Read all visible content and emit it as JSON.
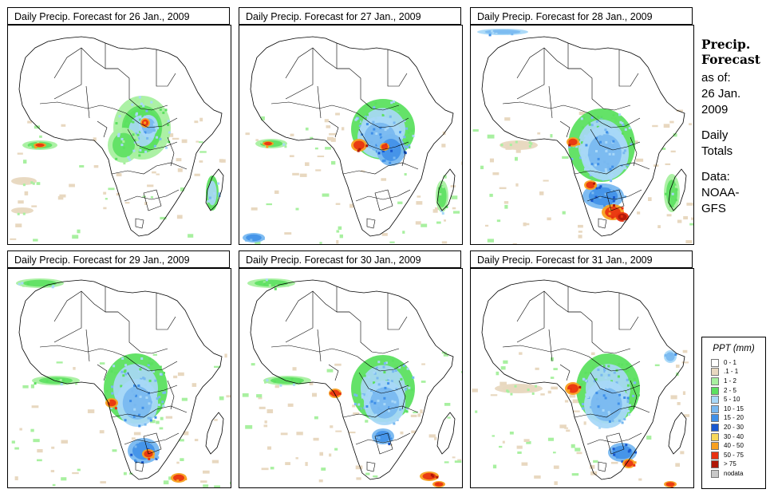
{
  "panels": [
    {
      "title": "Daily Precip. Forecast for  26 Jan., 2009",
      "day": 0
    },
    {
      "title": "Daily Precip. Forecast for  27 Jan., 2009",
      "day": 1
    },
    {
      "title": "Daily Precip. Forecast for  28 Jan., 2009",
      "day": 2
    },
    {
      "title": "Daily Precip. Forecast for  29 Jan., 2009",
      "day": 3
    },
    {
      "title": "Daily Precip. Forecast for  30 Jan., 2009",
      "day": 4
    },
    {
      "title": "Daily Precip. Forecast for  31 Jan., 2009",
      "day": 5
    }
  ],
  "side": {
    "title1": "Precip.",
    "title2": "Forecast",
    "asof1": "as of:",
    "asof2": "26 Jan.",
    "asof3": "2009",
    "daily1": "Daily",
    "daily2": "Totals",
    "data1": "Data:",
    "data2": "NOAA-",
    "data3": "GFS"
  },
  "legend": {
    "title": "PPT (mm)",
    "items": [
      {
        "label": "0 - 1",
        "color": "#ffffff"
      },
      {
        "label": ".1 - 1",
        "color": "#e8d8c0"
      },
      {
        "label": "1 - 2",
        "color": "#a8f0a0"
      },
      {
        "label": "2 - 5",
        "color": "#5ce060"
      },
      {
        "label": "5 - 10",
        "color": "#a8d8f8"
      },
      {
        "label": "10 - 15",
        "color": "#78b8f0"
      },
      {
        "label": "15 - 20",
        "color": "#4090e8"
      },
      {
        "label": "20 - 30",
        "color": "#1858d0"
      },
      {
        "label": "30 - 40",
        "color": "#f8d858"
      },
      {
        "label": "40 - 50",
        "color": "#f8a020"
      },
      {
        "label": "50 - 75",
        "color": "#e83010"
      },
      {
        "label": "> 75",
        "color": "#b01808"
      },
      {
        "label": "nodata",
        "color": "#c8c8c8"
      }
    ]
  }
}
